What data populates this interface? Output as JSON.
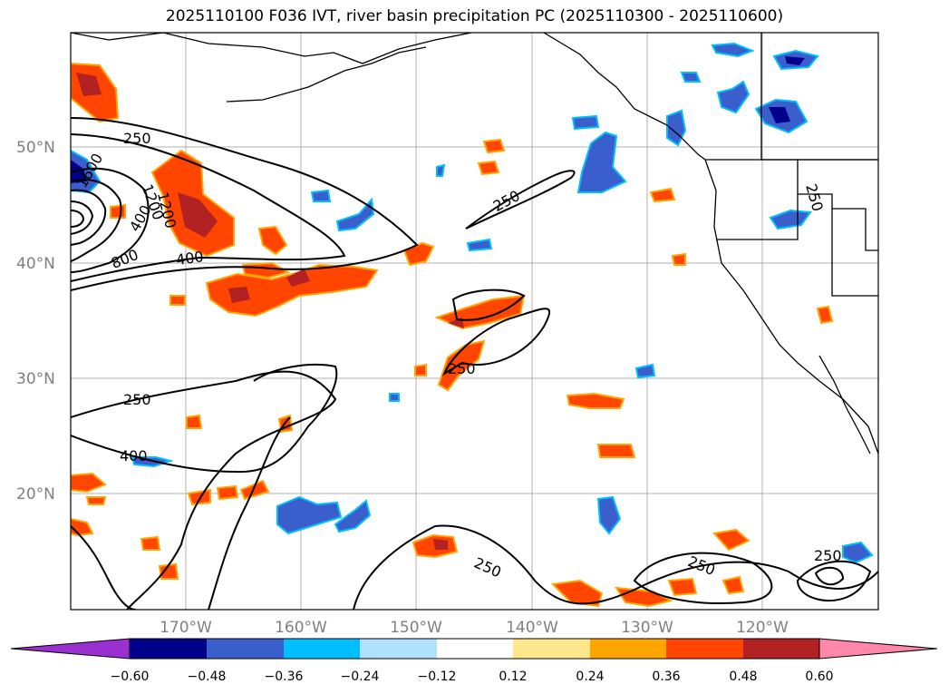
{
  "title": "2025110100 F036 IVT, river basin precipitation PC (2025110300 - 2025110600)",
  "lat_labels": [
    "50°N",
    "40°N",
    "30°N",
    "20°N"
  ],
  "lon_labels": [
    "170°W",
    "160°W",
    "150°W",
    "140°W",
    "130°W",
    "120°W"
  ],
  "contour_labels": [
    "250",
    "250",
    "250",
    "250",
    "250",
    "250",
    "250",
    "250",
    "400",
    "400",
    "400",
    "800",
    "1200",
    "1600",
    "1200"
  ],
  "colorbar": {
    "ticks": [
      "−0.60",
      "−0.48",
      "−0.36",
      "−0.24",
      "−0.12",
      "0.12",
      "0.24",
      "0.36",
      "0.48",
      "0.60"
    ],
    "colors": [
      "#9b30d0",
      "#00008b",
      "#3a5fcd",
      "#00bfff",
      "#b0e2ff",
      "#ffffff",
      "#ffe88c",
      "#ffa500",
      "#ff4500",
      "#b22222",
      "#ff88aa"
    ]
  },
  "colors": {
    "pos_low": "#ffe88c",
    "pos_mid": "#ffa500",
    "pos_high": "#ff4500",
    "pos_max": "#b22222",
    "neg_low": "#b0e2ff",
    "neg_mid": "#00bfff",
    "neg_high": "#3a5fcd",
    "neg_max": "#00008b"
  }
}
